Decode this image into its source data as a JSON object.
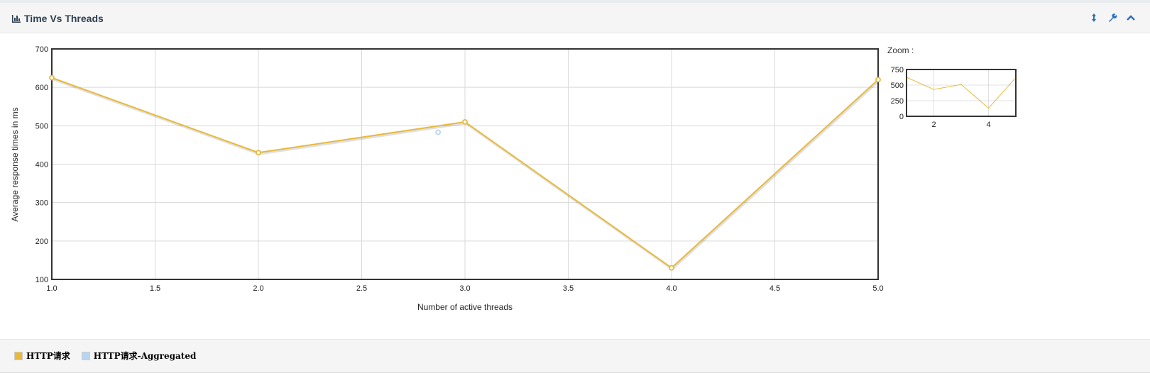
{
  "panel": {
    "title": "Time Vs Threads"
  },
  "icons": {
    "title": "bar-chart-icon",
    "tools": [
      "resize-vertical-icon",
      "wrench-icon",
      "chevron-up-icon"
    ]
  },
  "colors": {
    "series1": "#e8b93b",
    "series2": "#b7d5f0",
    "accent": "#2a6ebb"
  },
  "zoom": {
    "label": "Zoom :"
  },
  "chart_data": {
    "type": "line",
    "title": "",
    "xlabel": "Number of active threads",
    "ylabel": "Average response times in ms",
    "xlim": [
      1.0,
      5.0
    ],
    "ylim": [
      100,
      700
    ],
    "x_ticks": [
      "1.0",
      "1.5",
      "2.0",
      "2.5",
      "3.0",
      "3.5",
      "4.0",
      "4.5",
      "5.0"
    ],
    "y_ticks": [
      "100",
      "200",
      "300",
      "400",
      "500",
      "600",
      "700"
    ],
    "grid": true,
    "series": [
      {
        "name": "HTTP请求",
        "color": "#e8b93b",
        "x": [
          1,
          2,
          3,
          4,
          5
        ],
        "y": [
          625,
          430,
          510,
          130,
          620
        ]
      },
      {
        "name": "HTTP请求-Aggregated",
        "color": "#b7d5f0",
        "x": [
          2.87
        ],
        "y": [
          483
        ]
      }
    ],
    "zoom": {
      "xlim": [
        1,
        5
      ],
      "ylim": [
        0,
        750
      ],
      "x_ticks": [
        "2",
        "4"
      ],
      "y_ticks": [
        "0",
        "250",
        "500",
        "750"
      ]
    }
  }
}
